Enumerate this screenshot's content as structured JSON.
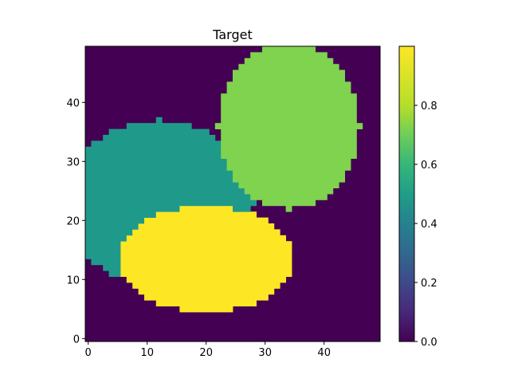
{
  "chart_data": {
    "type": "heatmap",
    "title": "Target",
    "grid": false,
    "colormap": "viridis",
    "value_range": [
      0.0,
      1.0
    ],
    "x_range": [
      -0.5,
      49.5
    ],
    "y_range": [
      -0.5,
      49.5
    ],
    "x_ticks": [
      0,
      10,
      20,
      30,
      40
    ],
    "y_ticks": [
      0,
      10,
      20,
      30,
      40
    ],
    "colorbar": {
      "position": "right",
      "ticks": [
        0.0,
        0.2,
        0.4,
        0.6,
        0.8
      ],
      "tick_labels": [
        "0.0",
        "0.2",
        "0.4",
        "0.6",
        "0.8"
      ]
    },
    "background_value": 0.0,
    "regions": [
      {
        "shape": "ellipse",
        "center": [
          12,
          23
        ],
        "radius_x": 16,
        "radius_y": 14,
        "value": 0.55,
        "color": "#1f9a8a"
      },
      {
        "shape": "ellipse",
        "center": [
          34,
          36
        ],
        "radius_x": 12,
        "radius_y": 14,
        "value": 0.83,
        "color": "#7fd34e"
      },
      {
        "shape": "ellipse",
        "center": [
          20,
          13.5
        ],
        "radius_x": 15,
        "radius_y": 9,
        "value": 1.0,
        "color": "#fde725"
      }
    ]
  }
}
